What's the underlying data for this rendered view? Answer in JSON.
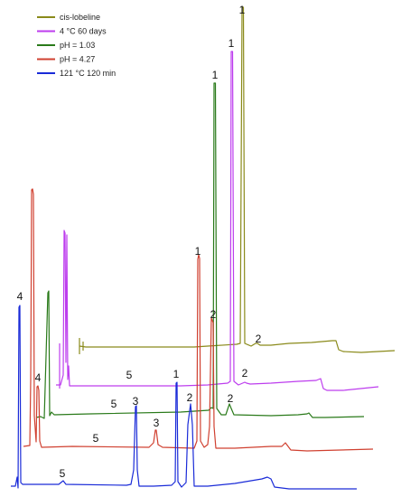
{
  "chart_data": {
    "type": "line",
    "title": "",
    "xlabel": "",
    "ylabel": "",
    "grid": false,
    "legend_position": "top-left",
    "series": [
      {
        "name": "cis-lobeline",
        "color": "#8a8a1a",
        "points": [
          [
            88,
            383
          ],
          [
            95,
            384
          ],
          [
            215,
            384
          ],
          [
            230,
            383
          ],
          [
            262,
            381
          ],
          [
            266,
            380
          ],
          [
            268,
            8
          ],
          [
            269.5,
            8
          ],
          [
            271,
            380
          ],
          [
            278,
            383
          ],
          [
            283,
            380
          ],
          [
            285,
            380
          ],
          [
            288,
            382
          ],
          [
            300,
            382
          ],
          [
            320,
            380
          ],
          [
            345,
            379
          ],
          [
            368,
            377
          ],
          [
            372,
            377
          ],
          [
            375,
            387
          ],
          [
            380,
            389
          ],
          [
            400,
            390
          ],
          [
            437,
            388
          ]
        ],
        "spikes": [
          [
            88,
            374,
            392
          ],
          [
            92,
            378,
            388
          ]
        ],
        "peak_labels": [
          {
            "text": "1",
            "x": 268,
            "y": 15
          },
          {
            "text": "2",
            "x": 286,
            "y": 379
          }
        ]
      },
      {
        "name": "4 °C 60 days",
        "color": "#bd3dee",
        "points": [
          [
            62,
            426
          ],
          [
            67,
            426
          ],
          [
            70,
            415
          ],
          [
            71,
            255
          ],
          [
            72,
            258
          ],
          [
            73,
            401
          ],
          [
            74,
            260
          ],
          [
            75,
            420
          ],
          [
            76,
            405
          ],
          [
            77,
            427
          ],
          [
            90,
            427
          ],
          [
            200,
            427
          ],
          [
            230,
            426
          ],
          [
            252,
            424
          ],
          [
            255,
            422
          ],
          [
            256,
            57
          ],
          [
            257.5,
            57
          ],
          [
            259,
            422
          ],
          [
            264,
            426
          ],
          [
            271,
            423
          ],
          [
            273,
            424
          ],
          [
            277,
            425
          ],
          [
            300,
            424
          ],
          [
            330,
            422
          ],
          [
            350,
            421
          ],
          [
            355,
            419
          ],
          [
            358,
            430
          ],
          [
            362,
            432
          ],
          [
            380,
            432
          ],
          [
            419,
            428
          ]
        ],
        "spikes": [
          [
            66,
            380,
            430
          ]
        ],
        "peak_labels": [
          {
            "text": "1",
            "x": 256,
            "y": 52
          },
          {
            "text": "2",
            "x": 271,
            "y": 417
          },
          {
            "text": "5",
            "x": 143,
            "y": 419
          }
        ]
      },
      {
        "name": "pH = 1.03",
        "color": "#2a7a1a",
        "points": [
          [
            40,
            462
          ],
          [
            45,
            461
          ],
          [
            49,
            463
          ],
          [
            53,
            324
          ],
          [
            54,
            322
          ],
          [
            55,
            460
          ],
          [
            57,
            456
          ],
          [
            60,
            459
          ],
          [
            100,
            458
          ],
          [
            200,
            456
          ],
          [
            231,
            454
          ],
          [
            234,
            451
          ],
          [
            236,
            452
          ],
          [
            237,
            92
          ],
          [
            238.5,
            92
          ],
          [
            240,
            452
          ],
          [
            245,
            459
          ],
          [
            250,
            459
          ],
          [
            254,
            447
          ],
          [
            256,
            452
          ],
          [
            259,
            459
          ],
          [
            300,
            460
          ],
          [
            330,
            459
          ],
          [
            340,
            458
          ],
          [
            342,
            457
          ],
          [
            346,
            462
          ],
          [
            360,
            462
          ],
          [
            403,
            461
          ]
        ],
        "spikes": [],
        "peak_labels": [
          {
            "text": "1",
            "x": 238,
            "y": 87
          },
          {
            "text": "2",
            "x": 236,
            "y": 352
          },
          {
            "text": "2",
            "x": 255,
            "y": 445
          },
          {
            "text": "5",
            "x": 126,
            "y": 451
          }
        ]
      },
      {
        "name": "pH = 4.27",
        "color": "#d04030",
        "points": [
          [
            26,
            494
          ],
          [
            33,
            493
          ],
          [
            34,
            420
          ],
          [
            35,
            210
          ],
          [
            36,
            209
          ],
          [
            37,
            215
          ],
          [
            38,
            460
          ],
          [
            40,
            489
          ],
          [
            41,
            428
          ],
          [
            42,
            427
          ],
          [
            43,
            432
          ],
          [
            44,
            488
          ],
          [
            46,
            495
          ],
          [
            80,
            494
          ],
          [
            165,
            495
          ],
          [
            170,
            490
          ],
          [
            172,
            476
          ],
          [
            173,
            476
          ],
          [
            175,
            492
          ],
          [
            180,
            495
          ],
          [
            215,
            496
          ],
          [
            218,
            488
          ],
          [
            219,
            287
          ],
          [
            220,
            282
          ],
          [
            221,
            286
          ],
          [
            222,
            488
          ],
          [
            226,
            495
          ],
          [
            230,
            492
          ],
          [
            232,
            472
          ],
          [
            234,
            352
          ],
          [
            236,
            357
          ],
          [
            237,
            472
          ],
          [
            239,
            496
          ],
          [
            260,
            496
          ],
          [
            300,
            494
          ],
          [
            312,
            494
          ],
          [
            316,
            490
          ],
          [
            322,
            498
          ],
          [
            340,
            499
          ],
          [
            413,
            497
          ]
        ],
        "spikes": [],
        "peak_labels": [
          {
            "text": "1",
            "x": 219,
            "y": 282
          },
          {
            "text": "3",
            "x": 173,
            "y": 472
          },
          {
            "text": "4",
            "x": 42,
            "y": 422
          },
          {
            "text": "5",
            "x": 106,
            "y": 489
          }
        ]
      },
      {
        "name": "121 °C 120 min",
        "color": "#1a2bd8",
        "points": [
          [
            12,
            538
          ],
          [
            17,
            538
          ],
          [
            19,
            528
          ],
          [
            20,
            540
          ],
          [
            21,
            340
          ],
          [
            22,
            338
          ],
          [
            23,
            534
          ],
          [
            25,
            536
          ],
          [
            65,
            536
          ],
          [
            70,
            532
          ],
          [
            73,
            536
          ],
          [
            140,
            537
          ],
          [
            145,
            536
          ],
          [
            148,
            520
          ],
          [
            150,
            450
          ],
          [
            151,
            449
          ],
          [
            152,
            520
          ],
          [
            154,
            538
          ],
          [
            170,
            538
          ],
          [
            190,
            537
          ],
          [
            194,
            533
          ],
          [
            195,
            424
          ],
          [
            196,
            423
          ],
          [
            197,
            533
          ],
          [
            201,
            539
          ],
          [
            206,
            534
          ],
          [
            208,
            470
          ],
          [
            211,
            447
          ],
          [
            213,
            470
          ],
          [
            215,
            538
          ],
          [
            230,
            538
          ],
          [
            240,
            537
          ],
          [
            260,
            535
          ],
          [
            290,
            530
          ],
          [
            296,
            528
          ],
          [
            300,
            530
          ],
          [
            304,
            539
          ],
          [
            320,
            541
          ],
          [
            395,
            541
          ]
        ],
        "spikes": [],
        "peak_labels": [
          {
            "text": "1",
            "x": 195,
            "y": 418
          },
          {
            "text": "2",
            "x": 210,
            "y": 444
          },
          {
            "text": "3",
            "x": 150,
            "y": 448
          },
          {
            "text": "4",
            "x": 22,
            "y": 332
          },
          {
            "text": "5",
            "x": 69,
            "y": 528
          }
        ]
      }
    ],
    "legend": [
      "cis-lobeline",
      "4 °C 60 days",
      "pH = 1.03",
      "pH = 4.27",
      "121 °C 120 min"
    ]
  }
}
